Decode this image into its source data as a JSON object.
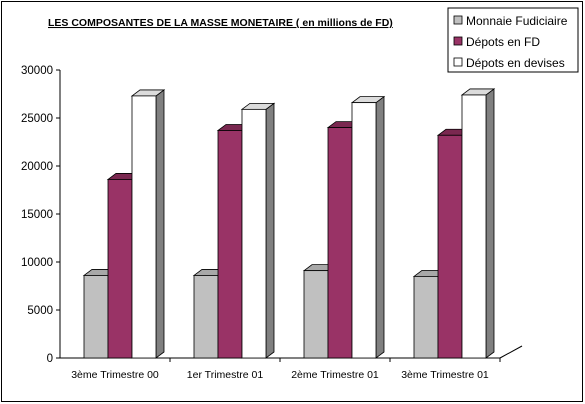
{
  "chart_data": {
    "type": "bar",
    "title": "LES COMPOSANTES DE LA MASSE MONETAIRE ( en millions de FD)",
    "categories": [
      "3ème Trimestre 00",
      "1er Trimestre 01",
      "2ème Trimestre 01",
      "3ème Trimestre 01"
    ],
    "series": [
      {
        "name": "Monnaie Fudiciaire",
        "values": [
          8600,
          8600,
          9100,
          8500
        ],
        "color": "#c0c0c0"
      },
      {
        "name": "Dépots en FD",
        "values": [
          18600,
          23700,
          24000,
          23200
        ],
        "color": "#993366"
      },
      {
        "name": "Dépots en devises",
        "values": [
          27300,
          25900,
          26600,
          27400
        ],
        "color": "#ffffff"
      }
    ],
    "yticks": [
      0,
      5000,
      10000,
      15000,
      20000,
      25000,
      30000
    ],
    "ylim": [
      0,
      30000
    ],
    "grid": false,
    "legend_position": "top-right",
    "three_d": true
  }
}
